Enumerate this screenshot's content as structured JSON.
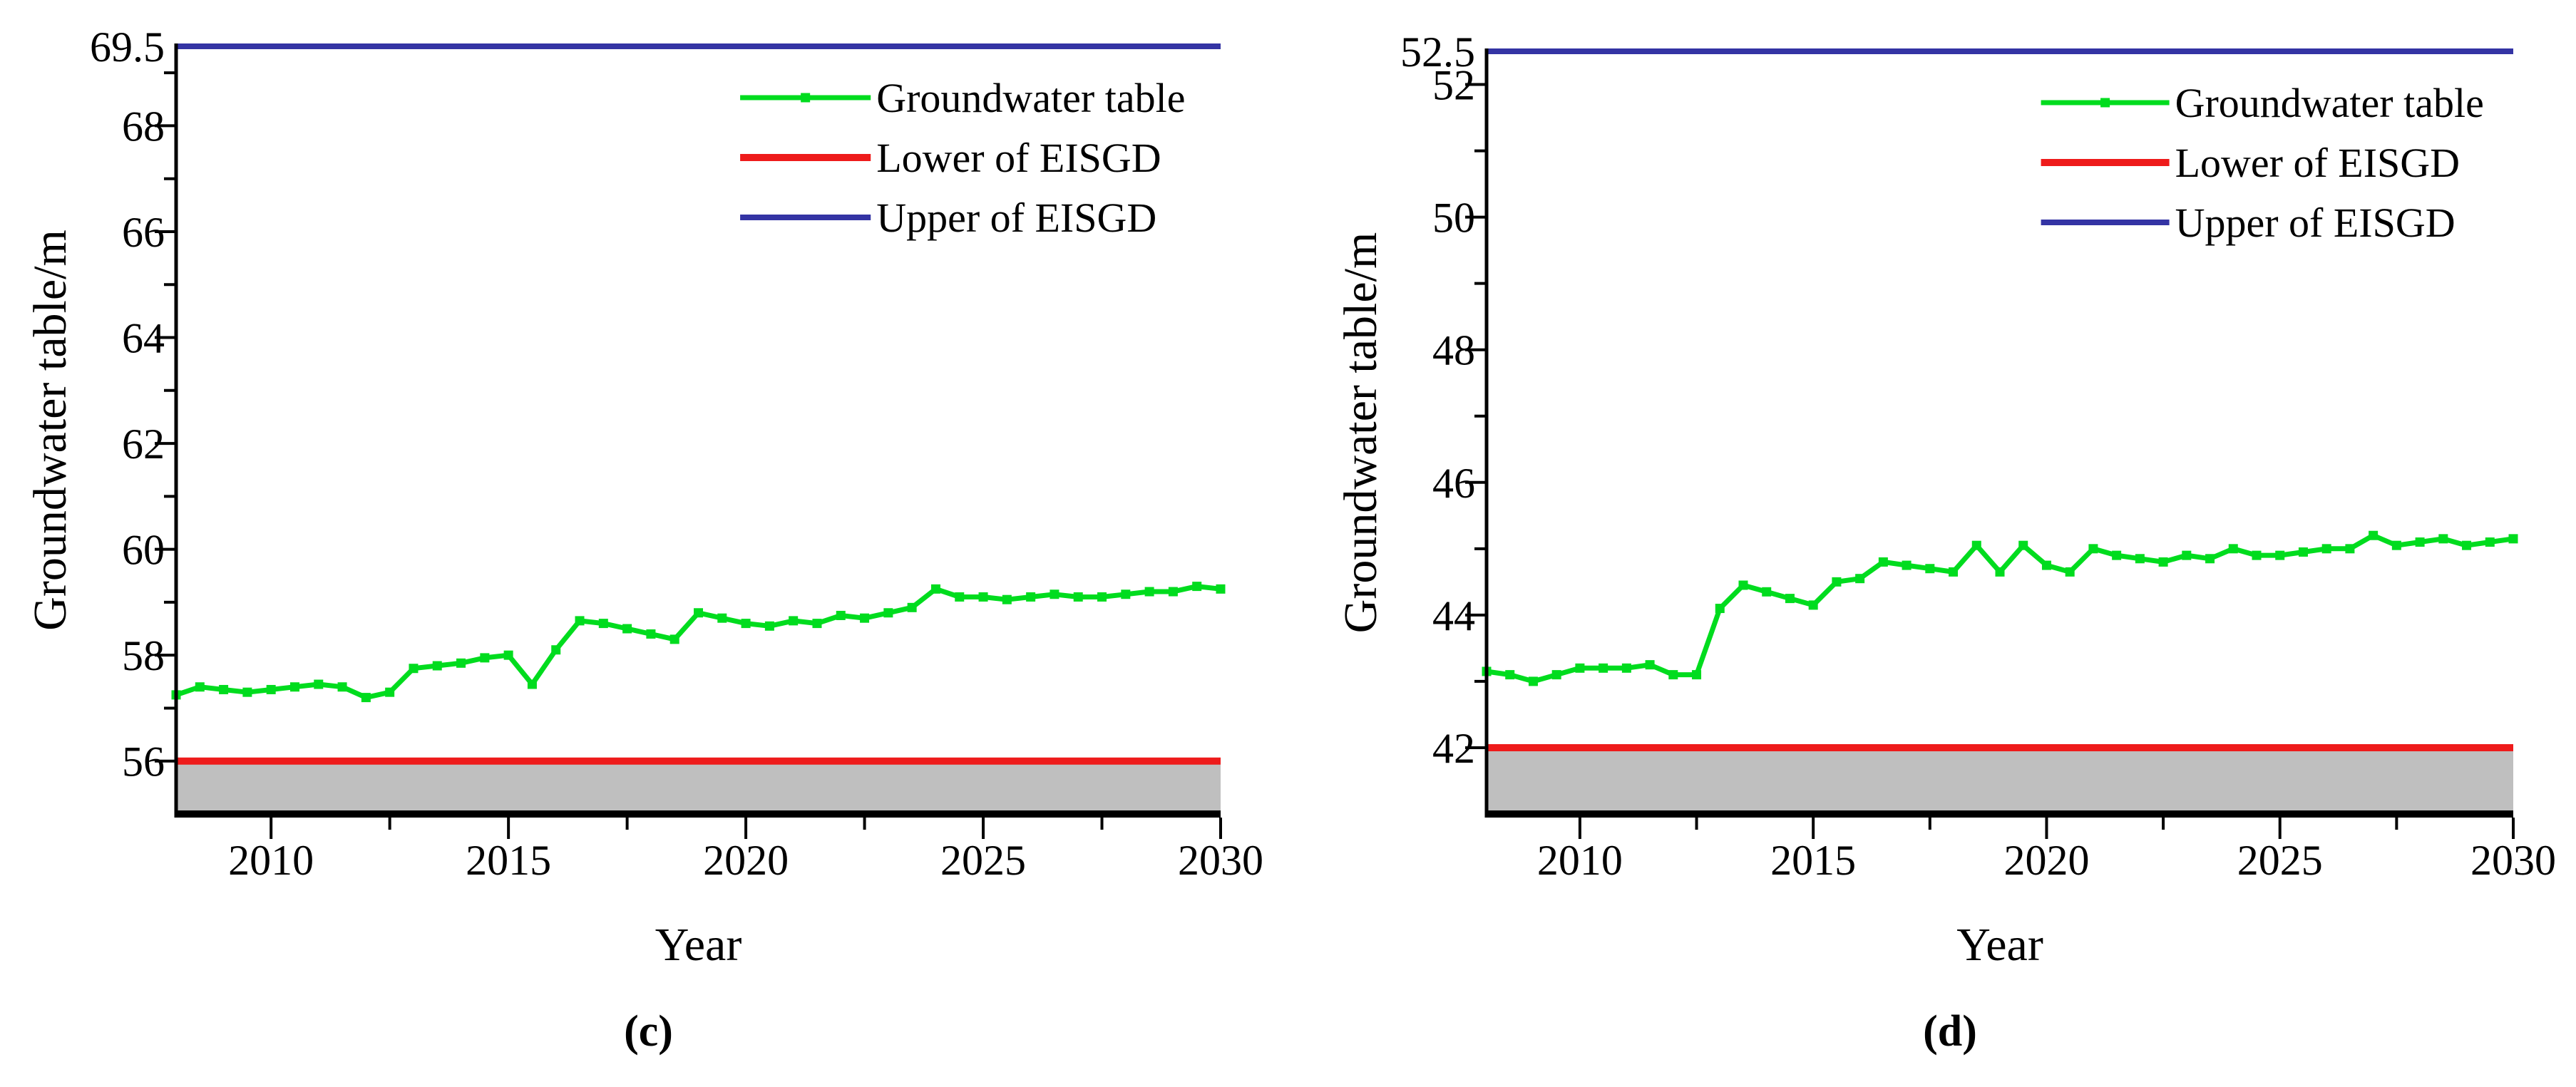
{
  "page": {
    "background": "#ffffff",
    "figure_type": "two-panel line chart figure"
  },
  "colors": {
    "groundwater_green": "#00dc1e",
    "lower_limit_red": "#ee1b1b",
    "upper_limit_blue": "#3434a4",
    "below_limit_gray": "#bfbfbf",
    "axis_black": "#000000"
  },
  "chart_data": [
    {
      "type": "line",
      "caption": "(c)",
      "xlabel": "Year",
      "ylabel": "Groundwater table/m",
      "xlim": [
        2008,
        2030
      ],
      "ylim": [
        55,
        69.5
      ],
      "xticks": [
        2010,
        2015,
        2020,
        2025,
        2030
      ],
      "xticks_minor": [
        2012.5,
        2017.5,
        2022.5,
        2027.5
      ],
      "yticks": [
        56,
        58,
        60,
        62,
        64,
        66,
        68
      ],
      "yticks_minor": [
        57,
        59,
        61,
        63,
        65,
        67,
        69
      ],
      "ytop_label": "69.5",
      "grid": false,
      "legend_position": "top-right-inside",
      "shaded_region": {
        "from": 55,
        "to": 56,
        "color": "#bfbfbf"
      },
      "series": [
        {
          "name": "Groundwater table",
          "kind": "line",
          "color": "#00dc1e",
          "marker": "square",
          "x": [
            2008,
            2008.5,
            2009,
            2009.5,
            2010,
            2010.5,
            2011,
            2011.5,
            2012,
            2012.5,
            2013,
            2013.5,
            2014,
            2014.5,
            2015,
            2015.5,
            2016,
            2016.5,
            2017,
            2017.5,
            2018,
            2018.5,
            2019,
            2019.5,
            2020,
            2020.5,
            2021,
            2021.5,
            2022,
            2022.5,
            2023,
            2023.5,
            2024,
            2024.5,
            2025,
            2025.5,
            2026,
            2026.5,
            2027,
            2027.5,
            2028,
            2028.5,
            2029,
            2029.5,
            2030
          ],
          "y": [
            57.25,
            57.4,
            57.35,
            57.3,
            57.35,
            57.4,
            57.45,
            57.4,
            57.2,
            57.3,
            57.75,
            57.8,
            57.85,
            57.95,
            58.0,
            57.45,
            58.1,
            58.65,
            58.6,
            58.5,
            58.4,
            58.3,
            58.8,
            58.7,
            58.6,
            58.55,
            58.65,
            58.6,
            58.75,
            58.7,
            58.8,
            58.9,
            59.25,
            59.1,
            59.1,
            59.05,
            59.1,
            59.15,
            59.1,
            59.1,
            59.15,
            59.2,
            59.2,
            59.3,
            59.25
          ]
        },
        {
          "name": "Lower of EISGD",
          "kind": "hline",
          "color": "#ee1b1b",
          "value": 56
        },
        {
          "name": "Upper of EISGD",
          "kind": "hline",
          "color": "#3434a4",
          "value": 69.5
        }
      ]
    },
    {
      "type": "line",
      "caption": "(d)",
      "xlabel": "Year",
      "ylabel": "Groundwater table/m",
      "xlim": [
        2008,
        2030
      ],
      "ylim": [
        41,
        52.5
      ],
      "xticks": [
        2010,
        2015,
        2020,
        2025,
        2030
      ],
      "xticks_minor": [
        2012.5,
        2017.5,
        2022.5,
        2027.5
      ],
      "yticks": [
        42,
        44,
        46,
        48,
        50,
        52
      ],
      "yticks_minor": [
        43,
        45,
        47,
        49,
        51
      ],
      "ytop_label": "52.5",
      "grid": false,
      "legend_position": "top-right-inside",
      "shaded_region": {
        "from": 41,
        "to": 42,
        "color": "#bfbfbf"
      },
      "series": [
        {
          "name": "Groundwater table",
          "kind": "line",
          "color": "#00dc1e",
          "marker": "square",
          "x": [
            2008,
            2008.5,
            2009,
            2009.5,
            2010,
            2010.5,
            2011,
            2011.5,
            2012,
            2012.5,
            2013,
            2013.5,
            2014,
            2014.5,
            2015,
            2015.5,
            2016,
            2016.5,
            2017,
            2017.5,
            2018,
            2018.5,
            2019,
            2019.5,
            2020,
            2020.5,
            2021,
            2021.5,
            2022,
            2022.5,
            2023,
            2023.5,
            2024,
            2024.5,
            2025,
            2025.5,
            2026,
            2026.5,
            2027,
            2027.5,
            2028,
            2028.5,
            2029,
            2029.5,
            2030
          ],
          "y": [
            43.15,
            43.1,
            43.0,
            43.1,
            43.2,
            43.2,
            43.2,
            43.25,
            43.1,
            43.1,
            44.1,
            44.45,
            44.35,
            44.25,
            44.15,
            44.5,
            44.55,
            44.8,
            44.75,
            44.7,
            44.65,
            45.05,
            44.65,
            45.05,
            44.75,
            44.65,
            45.0,
            44.9,
            44.85,
            44.8,
            44.9,
            44.85,
            45.0,
            44.9,
            44.9,
            44.95,
            45.0,
            45.0,
            45.2,
            45.05,
            45.1,
            45.15,
            45.05,
            45.1,
            45.15
          ]
        },
        {
          "name": "Lower of EISGD",
          "kind": "hline",
          "color": "#ee1b1b",
          "value": 42
        },
        {
          "name": "Upper of EISGD",
          "kind": "hline",
          "color": "#3434a4",
          "value": 52.5
        }
      ]
    }
  ]
}
